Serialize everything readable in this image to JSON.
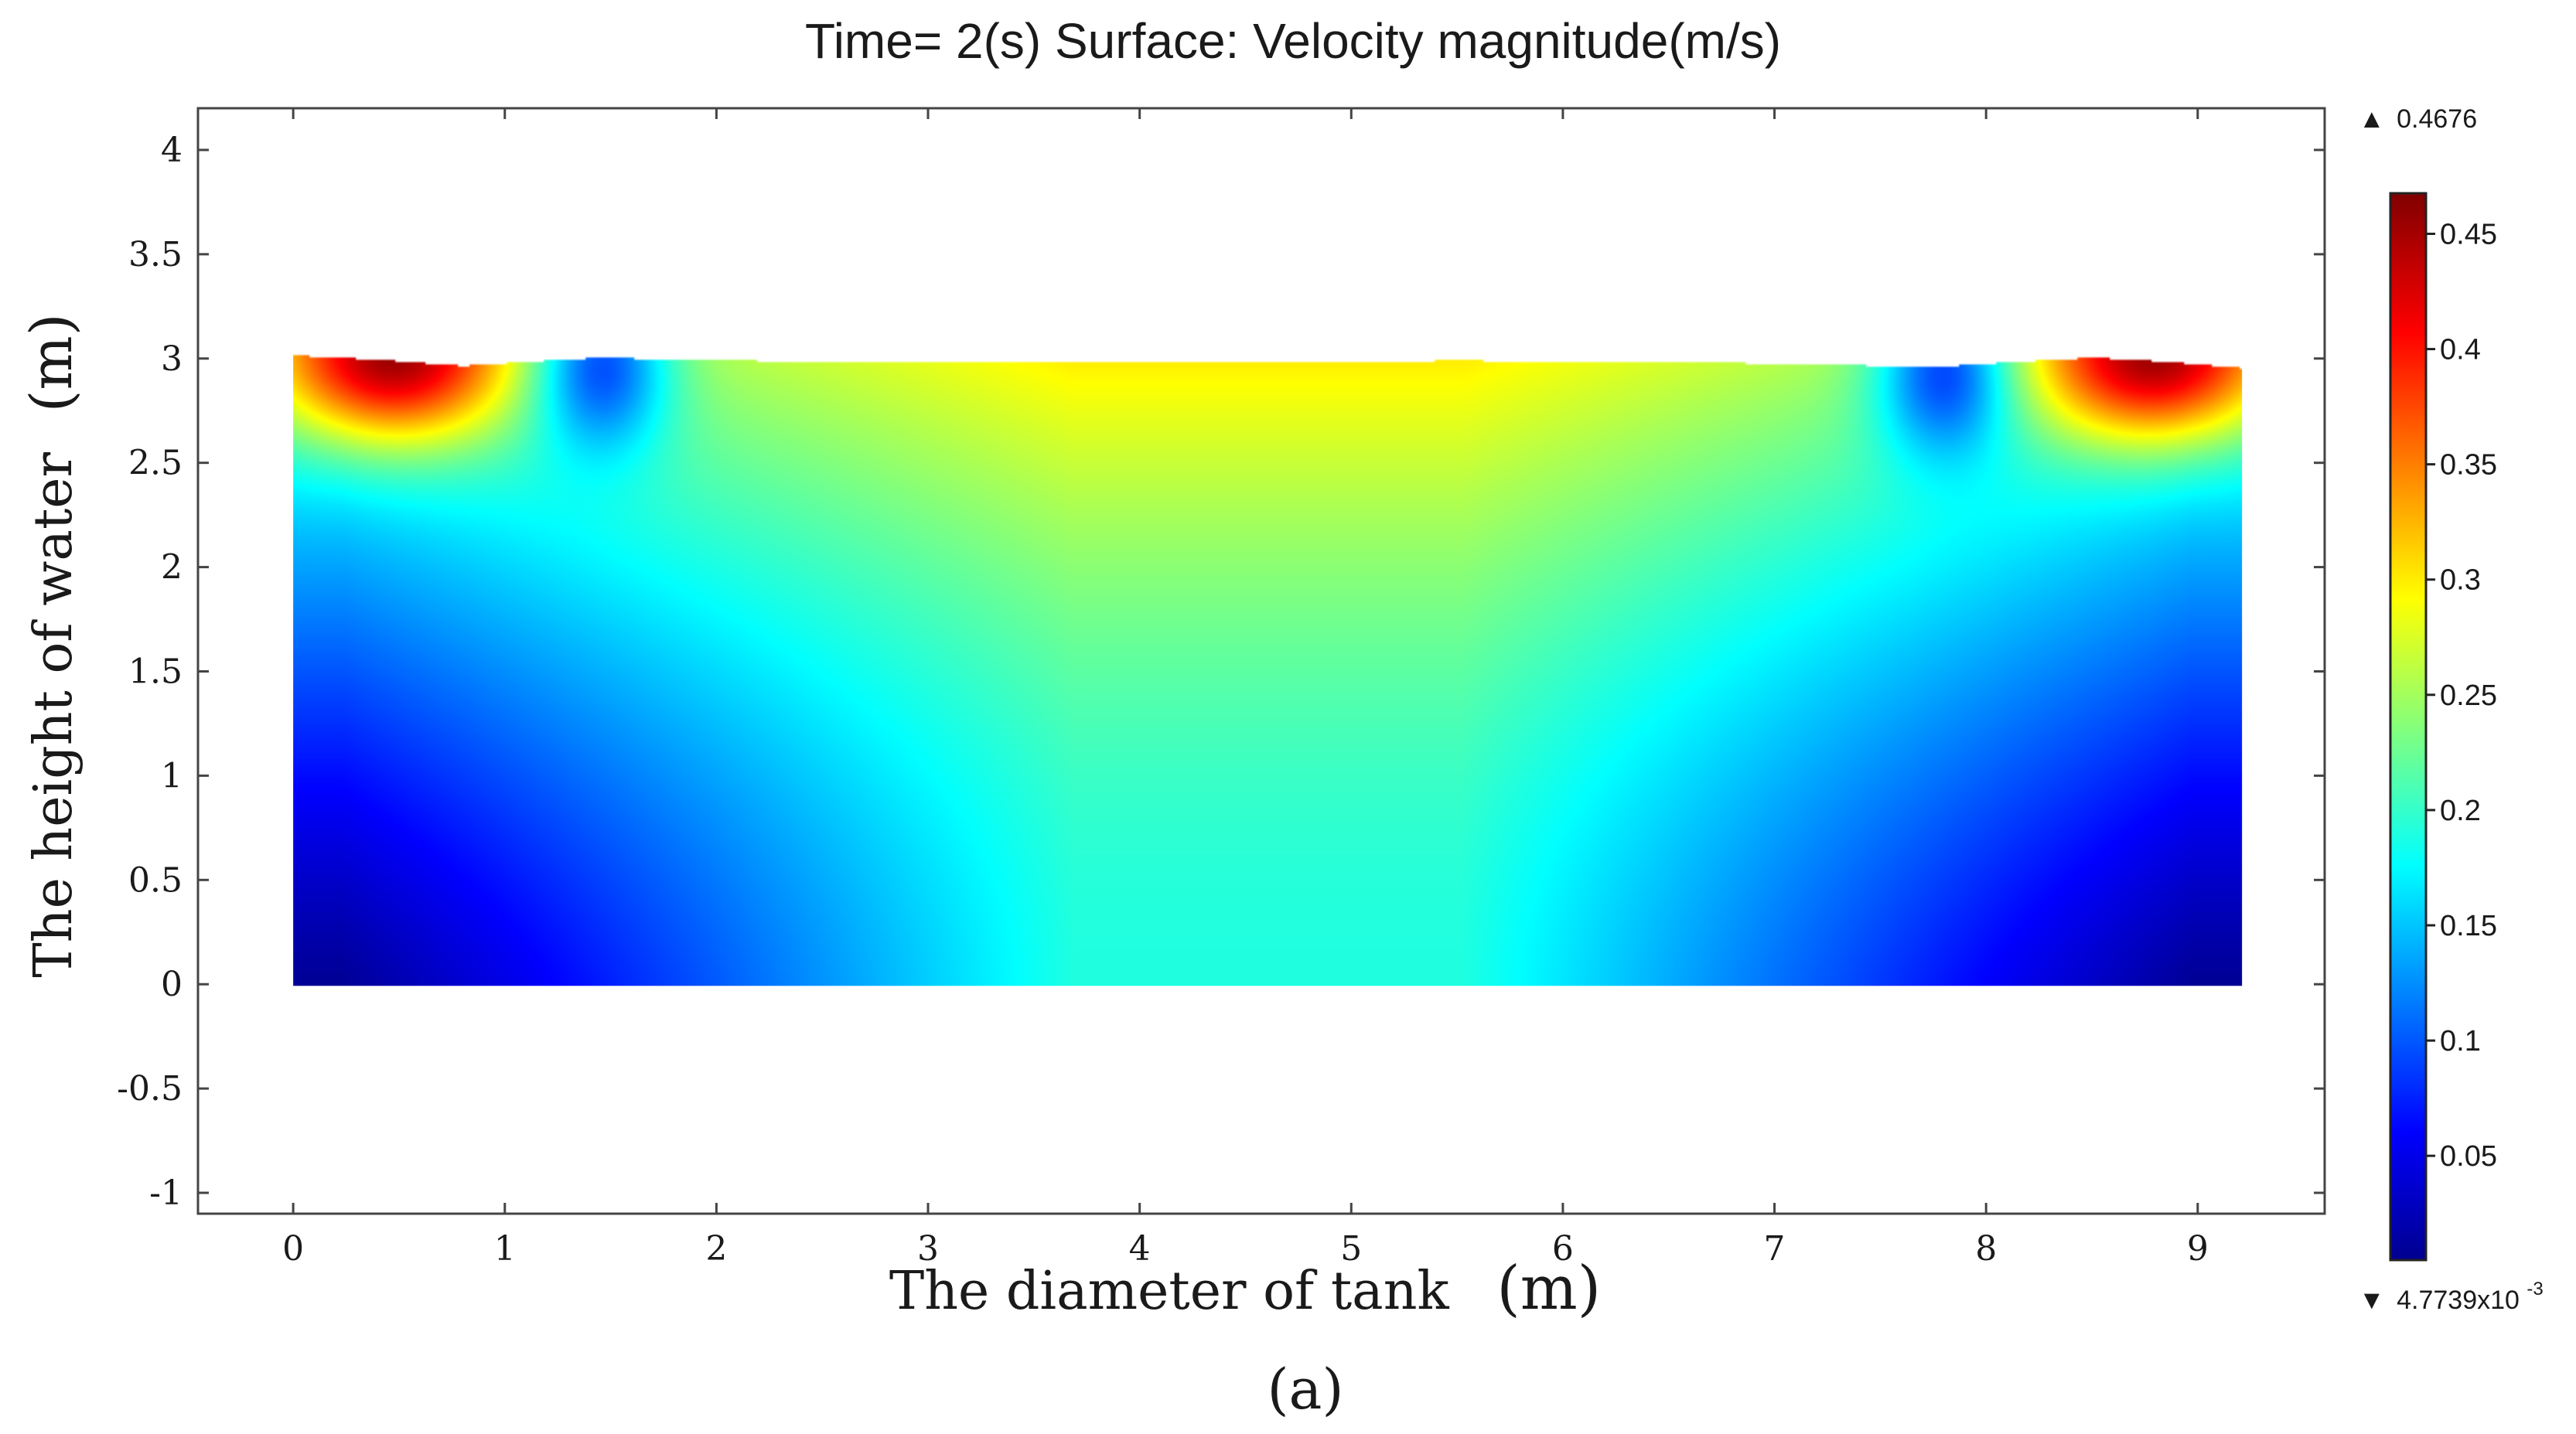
{
  "chart_data": {
    "type": "heatmap",
    "title": "Time= 2(s) Surface: Velocity magnitude(m/s)",
    "xlabel": "The diameter of tank",
    "xlabel_unit": "(m)",
    "ylabel": "The height of water",
    "ylabel_unit": "(m)",
    "xlim": [
      -0.45,
      9.6
    ],
    "ylim": [
      -1.1,
      4.2
    ],
    "x_ticks": [
      0,
      1,
      2,
      3,
      4,
      5,
      6,
      7,
      8,
      9
    ],
    "x_tick_labels": [
      "0",
      "1",
      "2",
      "3",
      "4",
      "5",
      "6",
      "7",
      "8",
      "9"
    ],
    "y_ticks": [
      4,
      3.5,
      3,
      2.5,
      2,
      1.5,
      1,
      0.5,
      0,
      -0.5,
      -1
    ],
    "y_tick_labels": [
      "4",
      "3.5",
      "3",
      "2.5",
      "2",
      "1.5",
      "1",
      "0.5",
      "0",
      "-0.5",
      "-1"
    ],
    "domain": {
      "x_min": 0,
      "x_max": 9.2,
      "y_min": 0,
      "y_max": 3.0
    },
    "free_surface": [
      [
        0,
        3.02
      ],
      [
        0.4,
        3.0
      ],
      [
        0.8,
        2.97
      ],
      [
        1.1,
        2.99
      ],
      [
        1.45,
        3.01
      ],
      [
        1.8,
        3.0
      ],
      [
        2.5,
        2.99
      ],
      [
        3.5,
        2.985
      ],
      [
        4.6,
        2.99
      ],
      [
        5.5,
        2.995
      ],
      [
        6.5,
        2.99
      ],
      [
        7.3,
        2.975
      ],
      [
        7.75,
        2.965
      ],
      [
        8.15,
        2.99
      ],
      [
        8.5,
        3.01
      ],
      [
        8.85,
        2.99
      ],
      [
        9.2,
        2.96
      ]
    ],
    "colorbar": {
      "max_label": "0.4676",
      "min_label": "4.7739x10",
      "min_exponent": "-3",
      "max": 0.4676,
      "min": 0.0047739,
      "ticks": [
        0.45,
        0.4,
        0.35,
        0.3,
        0.25,
        0.2,
        0.15,
        0.1,
        0.05
      ],
      "tick_labels": [
        "0.45",
        "0.4",
        "0.35",
        "0.3",
        "0.25",
        "0.2",
        "0.15",
        "0.1",
        "0.05"
      ],
      "colormap": "jet",
      "colors": [
        "#00008f",
        "#0000ff",
        "#00ffff",
        "#ffff00",
        "#ff0000",
        "#800000"
      ]
    },
    "regions": [
      {
        "name": "left-corner-max",
        "x": 0.45,
        "y": 2.92,
        "value": 0.46
      },
      {
        "name": "right-corner-max",
        "x": 8.8,
        "y": 2.92,
        "value": 0.46
      },
      {
        "name": "left-surface-min",
        "x": 1.45,
        "y": 2.9,
        "value": 0.06
      },
      {
        "name": "right-surface-min",
        "x": 7.8,
        "y": 2.87,
        "value": 0.06
      },
      {
        "name": "center-surface",
        "x": 4.6,
        "y": 2.9,
        "value": 0.3
      },
      {
        "name": "center-bottom",
        "x": 4.6,
        "y": 0.05,
        "value": 0.18
      },
      {
        "name": "bottom-left-corner",
        "x": 0.05,
        "y": 0.05,
        "value": 0.01
      },
      {
        "name": "bottom-right-corner",
        "x": 9.15,
        "y": 0.05,
        "value": 0.01
      }
    ]
  },
  "caption": "(a)"
}
